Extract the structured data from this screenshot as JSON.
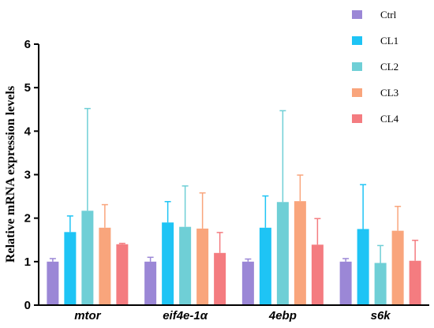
{
  "chart_data": {
    "type": "bar",
    "ylabel": "Relative mRNA expression levels",
    "xlabel": "",
    "ylim": [
      0,
      6
    ],
    "yticks": [
      0,
      1,
      2,
      3,
      4,
      5,
      6
    ],
    "categories": [
      "mtor",
      "eif4e-1α",
      "4ebp",
      "s6k"
    ],
    "series": [
      {
        "name": "Ctrl",
        "color": "#9b87d6",
        "values": [
          1.0,
          1.0,
          1.0,
          1.0
        ],
        "errors": [
          0.07,
          0.1,
          0.06,
          0.07
        ]
      },
      {
        "name": "CL1",
        "color": "#1ec4f5",
        "values": [
          1.68,
          1.9,
          1.78,
          1.75
        ],
        "errors": [
          0.37,
          0.48,
          0.73,
          1.02
        ]
      },
      {
        "name": "CL2",
        "color": "#6fcfd6",
        "values": [
          2.17,
          1.8,
          2.37,
          0.97
        ],
        "errors": [
          2.35,
          0.94,
          2.1,
          0.4
        ]
      },
      {
        "name": "CL3",
        "color": "#f9a57c",
        "values": [
          1.78,
          1.76,
          2.39,
          1.71
        ],
        "errors": [
          0.53,
          0.82,
          0.6,
          0.56
        ]
      },
      {
        "name": "CL4",
        "color": "#f47c80",
        "values": [
          1.4,
          1.2,
          1.39,
          1.02
        ],
        "errors": [
          0.02,
          0.47,
          0.6,
          0.47
        ]
      }
    ],
    "legend_position": "top-right",
    "grid": false
  }
}
